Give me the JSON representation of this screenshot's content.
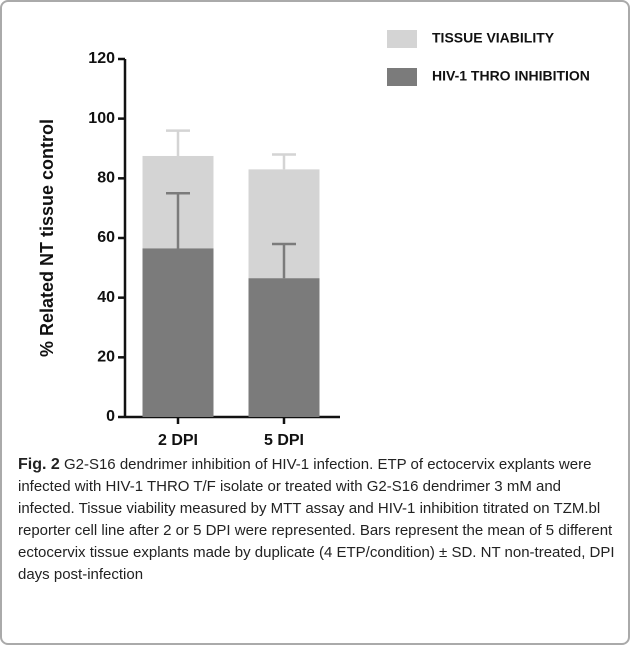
{
  "chart_data": {
    "type": "bar",
    "ylabel": "% Related NT tissue control",
    "categories": [
      "2 DPI",
      "5 DPI"
    ],
    "series": [
      {
        "name": "TISSUE VIABILITY",
        "color": "#d4d4d4",
        "values": [
          87.5,
          83
        ],
        "errors": [
          8.5,
          5
        ]
      },
      {
        "name": "HIV-1 THRO INHIBITION",
        "color": "#7b7b7b",
        "values": [
          56.5,
          46.5
        ],
        "errors": [
          18.5,
          11.5
        ]
      }
    ],
    "ylim": [
      0,
      120
    ],
    "yticks": [
      0,
      20,
      40,
      60,
      80,
      100,
      120
    ],
    "legend": "upper right"
  },
  "caption": {
    "label": "Fig. 2",
    "text": "G2-S16 dendrimer inhibition of HIV-1 infection. ETP of ectocervix explants were infected with HIV-1 THRO T/F isolate or treated with G2-S16 dendrimer 3 mM and infected. Tissue viability measured by MTT assay and HIV-1 inhibition titrated on TZM.bl reporter cell line after 2 or 5 DPI were represented. Bars represent the mean of 5 different ectocervix tissue explants made by duplicate (4 ETP/condition) ± SD. NT non-treated, DPI days post-infection"
  }
}
